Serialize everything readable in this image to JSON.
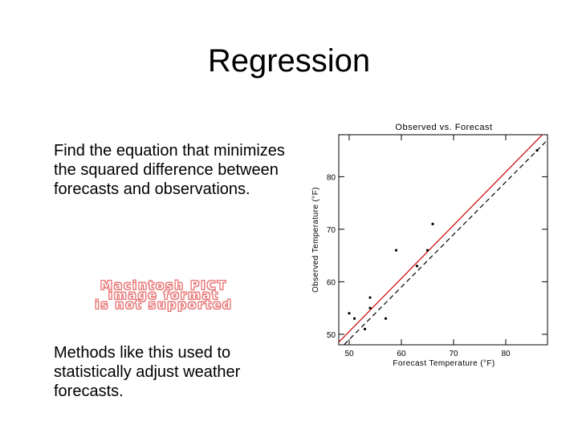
{
  "slide": {
    "title": "Regression",
    "text1": "Find the equation that minimizes the squared difference between forecasts and observations.",
    "text2": "Methods like this used to statistically adjust weather forecasts.",
    "pict_lines": [
      "Macintosh PICT",
      "image format",
      "is not supported"
    ]
  },
  "colors": {
    "regression_line": "#cc0000",
    "pict_text": "#e06a6a"
  },
  "chart_data": {
    "type": "scatter",
    "title": "Observed vs. Forecast",
    "xlabel": "Forecast Temperature (°F)",
    "ylabel": "Observed Temperature (°F)",
    "xlim": [
      48,
      88
    ],
    "ylim": [
      48,
      88
    ],
    "xticks": [
      50,
      60,
      70,
      80
    ],
    "yticks": [
      50,
      60,
      70,
      80
    ],
    "grid": false,
    "points": [
      [
        50,
        54
      ],
      [
        51,
        53
      ],
      [
        53,
        51
      ],
      [
        54,
        55
      ],
      [
        54,
        57
      ],
      [
        57,
        53
      ],
      [
        59,
        66
      ],
      [
        63,
        63
      ],
      [
        65,
        66
      ],
      [
        66,
        71
      ],
      [
        86,
        85
      ]
    ],
    "lines": [
      {
        "style": "solid",
        "color": "#cc0000",
        "x": [
          48,
          88
        ],
        "y": [
          48.5,
          89
        ]
      },
      {
        "style": "dashed",
        "color": "#000000",
        "x": [
          48,
          88
        ],
        "y": [
          47,
          87
        ]
      }
    ]
  }
}
